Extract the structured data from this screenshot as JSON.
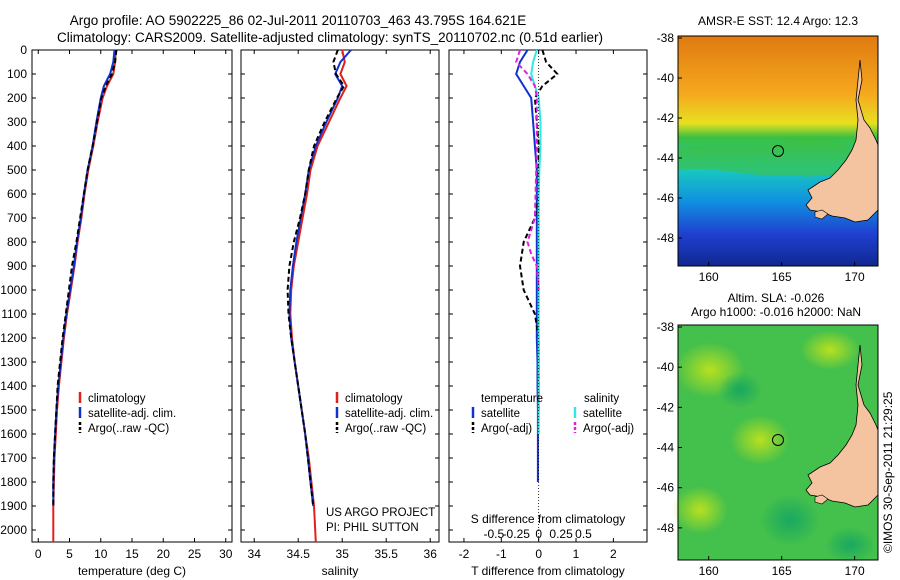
{
  "header": {
    "line1": "Argo profile: AO 5902225_86 02-Jul-2011 20110703_463 43.795S 164.621E",
    "line2": "Climatology: CARS2009. Satellite-adjusted climatology: synTS_20110702.nc (0.51d earlier)"
  },
  "depth_ticks": [
    "0",
    "100",
    "200",
    "300",
    "400",
    "500",
    "600",
    "700",
    "800",
    "900",
    "1000",
    "1100",
    "1200",
    "1300",
    "1400",
    "1500",
    "1600",
    "1700",
    "1800",
    "1900",
    "2000"
  ],
  "colors": {
    "climatology": "#e0201a",
    "satellite": "#1030d0",
    "argo": "#000000",
    "satellite_salinity": "#30e8e8",
    "argo_salinity_adj": "#e020e0",
    "land": "#f4c4a0"
  },
  "temperature_panel": {
    "xlabel": "temperature (deg C)",
    "xticks": [
      "0",
      "5",
      "10",
      "15",
      "20",
      "25",
      "30"
    ],
    "legend": [
      "climatology",
      "satellite-adj. clim.",
      "Argo(..raw -QC)"
    ]
  },
  "salinity_panel": {
    "xlabel": "salinity",
    "xticks": [
      "34",
      "34.5",
      "35",
      "35.5",
      "36"
    ],
    "legend": [
      "climatology",
      "satellite-adj. clim.",
      "Argo(..raw -QC)"
    ],
    "note1": "US ARGO PROJECT",
    "note2": "PI: PHIL SUTTON"
  },
  "difference_panel": {
    "xlabel": "T difference from climatology",
    "top_axis_label": "S difference from climatology",
    "xticks": [
      "-2",
      "-1",
      "0",
      "1",
      "2"
    ],
    "sticks": [
      "-0.5",
      "-0.25",
      "0",
      "0.25",
      "0.5"
    ],
    "legend_temp_title": "temperature",
    "legend_sal_title": "salinity",
    "legend_temp": [
      "satellite",
      "Argo(-adj)"
    ],
    "legend_sal": [
      "satellite",
      "Argo(-adj)"
    ]
  },
  "sst_map": {
    "title": "AMSR-E SST: 12.4  Argo: 12.3",
    "lat_ticks": [
      "-38",
      "-40",
      "-42",
      "-44",
      "-46",
      "-48"
    ],
    "lon_ticks": [
      "160",
      "165",
      "170"
    ]
  },
  "sla_map": {
    "title1": "Altim. SLA: -0.026",
    "title2": "Argo h1000: -0.016 h2000: NaN",
    "lat_ticks": [
      "-38",
      "-40",
      "-42",
      "-44",
      "-46",
      "-48"
    ],
    "lon_ticks": [
      "160",
      "165",
      "170"
    ]
  },
  "stamp": "©IMOS 30-Sep-2011 21:29:25",
  "chart_data": [
    {
      "type": "line",
      "panel": "temperature",
      "xlabel": "temperature (deg C)",
      "ylabel": "",
      "xlim": [
        -1,
        31
      ],
      "ylim": [
        2050,
        0
      ],
      "series": [
        {
          "name": "climatology",
          "x": [
            12.4,
            12.3,
            12.0,
            11.0,
            10.3,
            9.5,
            8.8,
            8.0,
            7.4,
            6.9,
            6.3,
            5.8,
            5.2,
            4.6,
            4.1,
            3.7,
            3.3,
            3.0,
            2.8,
            2.6,
            2.5,
            2.4,
            2.4
          ],
          "y": [
            0,
            50,
            100,
            150,
            200,
            300,
            400,
            500,
            600,
            700,
            800,
            900,
            1000,
            1100,
            1200,
            1300,
            1400,
            1500,
            1600,
            1700,
            1800,
            1900,
            2050
          ]
        },
        {
          "name": "satellite-adj. clim.",
          "x": [
            12.2,
            12.0,
            11.5,
            10.5,
            10.0,
            9.3,
            8.7,
            7.9,
            7.3,
            6.8,
            6.2,
            5.7,
            5.1,
            4.5,
            4.0,
            3.6,
            3.2,
            2.9,
            2.7,
            2.5,
            2.4,
            2.4
          ],
          "y": [
            0,
            50,
            100,
            150,
            200,
            300,
            400,
            500,
            600,
            700,
            800,
            900,
            1000,
            1100,
            1200,
            1300,
            1400,
            1500,
            1600,
            1700,
            1800,
            1900
          ]
        },
        {
          "name": "Argo(..raw -QC)",
          "x": [
            12.5,
            12.3,
            11.8,
            10.8,
            10.1,
            9.4,
            8.7,
            7.9,
            7.3,
            6.7,
            6.1,
            5.4,
            4.9,
            4.4,
            3.9,
            3.5,
            3.1,
            2.9,
            2.7,
            2.5,
            2.4,
            2.4
          ],
          "y": [
            0,
            50,
            100,
            150,
            200,
            300,
            400,
            500,
            600,
            700,
            800,
            900,
            1000,
            1100,
            1200,
            1300,
            1400,
            1500,
            1600,
            1700,
            1800,
            1900
          ]
        }
      ]
    },
    {
      "type": "line",
      "panel": "salinity",
      "xlabel": "salinity",
      "ylabel": "",
      "xlim": [
        33.85,
        36.1
      ],
      "ylim": [
        2050,
        0
      ],
      "series": [
        {
          "name": "climatology",
          "x": [
            35.0,
            35.03,
            34.98,
            35.05,
            34.98,
            34.85,
            34.72,
            34.64,
            34.6,
            34.55,
            34.5,
            34.45,
            34.42,
            34.41,
            34.43,
            34.46,
            34.5,
            34.54,
            34.58,
            34.62,
            34.65,
            34.68,
            34.7
          ],
          "y": [
            0,
            50,
            100,
            150,
            200,
            300,
            400,
            500,
            600,
            700,
            800,
            900,
            1000,
            1100,
            1200,
            1300,
            1400,
            1500,
            1600,
            1700,
            1800,
            1900,
            2050
          ]
        },
        {
          "name": "satellite-adj. clim.",
          "x": [
            35.1,
            34.98,
            34.92,
            35.0,
            34.95,
            34.82,
            34.7,
            34.62,
            34.58,
            34.53,
            34.48,
            34.44,
            34.41,
            34.4,
            34.42,
            34.46,
            34.5,
            34.54,
            34.58,
            34.61,
            34.64,
            34.67
          ],
          "y": [
            0,
            50,
            100,
            150,
            200,
            300,
            400,
            500,
            600,
            700,
            800,
            900,
            1000,
            1100,
            1200,
            1300,
            1400,
            1500,
            1600,
            1700,
            1800,
            1900
          ]
        },
        {
          "name": "Argo(..raw -QC)",
          "x": [
            34.95,
            34.9,
            34.93,
            35.02,
            34.94,
            34.8,
            34.68,
            34.62,
            34.58,
            34.52,
            34.45,
            34.4,
            34.38,
            34.39,
            34.42,
            34.46,
            34.5,
            34.54,
            34.58,
            34.61,
            34.64,
            34.67
          ],
          "y": [
            0,
            50,
            100,
            150,
            200,
            300,
            400,
            500,
            600,
            700,
            800,
            900,
            1000,
            1100,
            1200,
            1300,
            1400,
            1500,
            1600,
            1700,
            1800,
            1900
          ]
        }
      ]
    },
    {
      "type": "line",
      "panel": "difference",
      "xlabel": "T difference from climatology",
      "ylabel": "",
      "xlim": [
        -2.4,
        2.9
      ],
      "ylim": [
        2050,
        0
      ],
      "series": [
        {
          "name": "temperature satellite",
          "x": [
            -0.3,
            -0.5,
            -0.6,
            -0.4,
            -0.2,
            -0.15,
            -0.1,
            -0.05,
            -0.05,
            -0.05,
            -0.05,
            -0.05,
            -0.05,
            -0.05,
            -0.05,
            -0.03,
            -0.03,
            -0.02,
            -0.02,
            -0.02,
            -0.02
          ],
          "y": [
            0,
            50,
            100,
            150,
            200,
            300,
            400,
            500,
            600,
            700,
            800,
            900,
            1000,
            1100,
            1200,
            1300,
            1400,
            1500,
            1600,
            1700,
            1800
          ]
        },
        {
          "name": "temperature Argo(-adj)",
          "x": [
            0.1,
            0.2,
            0.5,
            0.1,
            -0.1,
            -0.05,
            0.0,
            0.0,
            0.0,
            -0.1,
            -0.4,
            -0.5,
            -0.4,
            -0.1,
            0.0,
            0.0,
            0.0,
            0.0
          ],
          "y": [
            0,
            50,
            100,
            150,
            200,
            300,
            400,
            500,
            600,
            700,
            800,
            900,
            1000,
            1100,
            1200,
            1300,
            1400,
            1500
          ]
        },
        {
          "name": "salinity satellite",
          "x": [
            -0.05,
            -0.15,
            -0.2,
            -0.1,
            0.0,
            0.05,
            0.05,
            0.02,
            0.0,
            0.0,
            0.0,
            0.0,
            0.0,
            0.0,
            0.0,
            0.0,
            0.0,
            0.0,
            0.0
          ],
          "y": [
            0,
            50,
            100,
            150,
            200,
            300,
            400,
            500,
            600,
            700,
            800,
            900,
            1000,
            1100,
            1200,
            1300,
            1400,
            1500,
            1600
          ]
        },
        {
          "name": "salinity Argo(-adj)",
          "x": [
            -0.5,
            -0.6,
            -0.3,
            -0.1,
            -0.05,
            -0.05,
            -0.05,
            -0.1,
            -0.3,
            -0.2,
            -0.05,
            0.0
          ],
          "y": [
            0,
            50,
            100,
            150,
            200,
            300,
            400,
            700,
            800,
            850,
            900,
            1000
          ]
        }
      ]
    }
  ]
}
